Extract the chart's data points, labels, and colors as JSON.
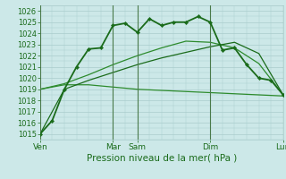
{
  "xlabel": "Pression niveau de la mer( hPa )",
  "ylim": [
    1014.5,
    1026.5
  ],
  "yticks": [
    1015,
    1016,
    1017,
    1018,
    1019,
    1020,
    1021,
    1022,
    1023,
    1024,
    1025,
    1026
  ],
  "bg_color": "#cce8e8",
  "grid_color": "#aacccc",
  "line_color_dark": "#1a6b1a",
  "x_tick_labels": [
    "Ven",
    "Mar",
    "Sam",
    "Dim",
    "Lun"
  ],
  "x_tick_positions": [
    0,
    36,
    48,
    84,
    120
  ],
  "x_day_lines": [
    0,
    36,
    48,
    84,
    120
  ],
  "s1_x": [
    0,
    6,
    12,
    18,
    24,
    30,
    36,
    42,
    48,
    54,
    60,
    66,
    72,
    78,
    84,
    90,
    96,
    102,
    108,
    114,
    120
  ],
  "s1_y": [
    1015.0,
    1016.2,
    1019.0,
    1021.0,
    1022.6,
    1022.7,
    1024.7,
    1024.9,
    1024.1,
    1025.3,
    1024.7,
    1025.0,
    1025.0,
    1025.5,
    1025.0,
    1022.5,
    1022.7,
    1021.2,
    1020.0,
    1019.8,
    1018.5
  ],
  "s2_x": [
    0,
    12,
    24,
    36,
    48,
    60,
    72,
    84,
    96,
    108,
    120
  ],
  "s2_y": [
    1019.0,
    1019.4,
    1019.4,
    1019.2,
    1019.0,
    1018.9,
    1018.8,
    1018.7,
    1018.6,
    1018.5,
    1018.4
  ],
  "s3_x": [
    0,
    12,
    24,
    36,
    48,
    60,
    72,
    84,
    96,
    108,
    120
  ],
  "s3_y": [
    1019.0,
    1019.5,
    1020.3,
    1021.2,
    1022.0,
    1022.7,
    1023.3,
    1023.2,
    1022.7,
    1021.3,
    1018.5
  ],
  "s4_x": [
    0,
    12,
    24,
    36,
    48,
    60,
    72,
    84,
    96,
    108,
    120
  ],
  "s4_y": [
    1015.0,
    1019.0,
    1019.8,
    1020.5,
    1021.2,
    1021.8,
    1022.3,
    1022.8,
    1023.2,
    1022.2,
    1018.5
  ]
}
